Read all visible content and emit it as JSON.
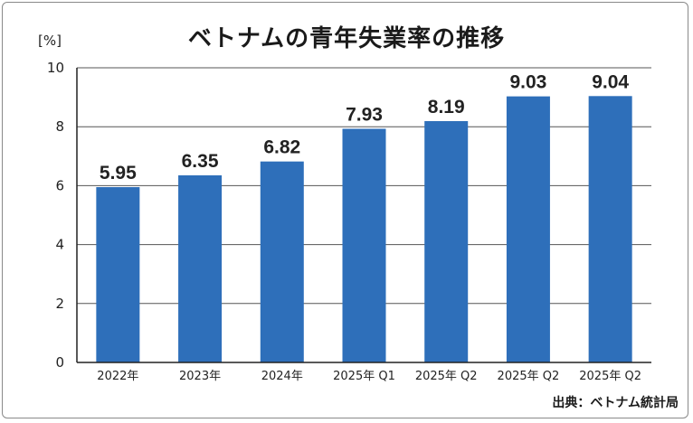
{
  "title": "ベトナムの青年失業率の推移",
  "unit_label": "[%]",
  "source": "出典：ベトナム統計局",
  "colors": {
    "bar": "#2e6fba",
    "grid": "#555555",
    "axis": "#222222"
  },
  "chart_data": {
    "type": "bar",
    "title": "ベトナムの青年失業率の推移",
    "categories": [
      "2022年",
      "2023年",
      "2024年",
      "2025年 Q1",
      "2025年 Q2",
      "2025年 Q2",
      "2025年 Q2"
    ],
    "values": [
      5.95,
      6.35,
      6.82,
      7.93,
      8.19,
      9.03,
      9.04
    ],
    "value_labels": [
      "5.95",
      "6.35",
      "6.82",
      "7.93",
      "8.19",
      "9.03",
      "9.04"
    ],
    "ylabel": "[%]",
    "ylim": [
      0,
      10
    ],
    "yticks": [
      "0",
      "2",
      "4",
      "6",
      "8",
      "10"
    ],
    "grid": true
  }
}
